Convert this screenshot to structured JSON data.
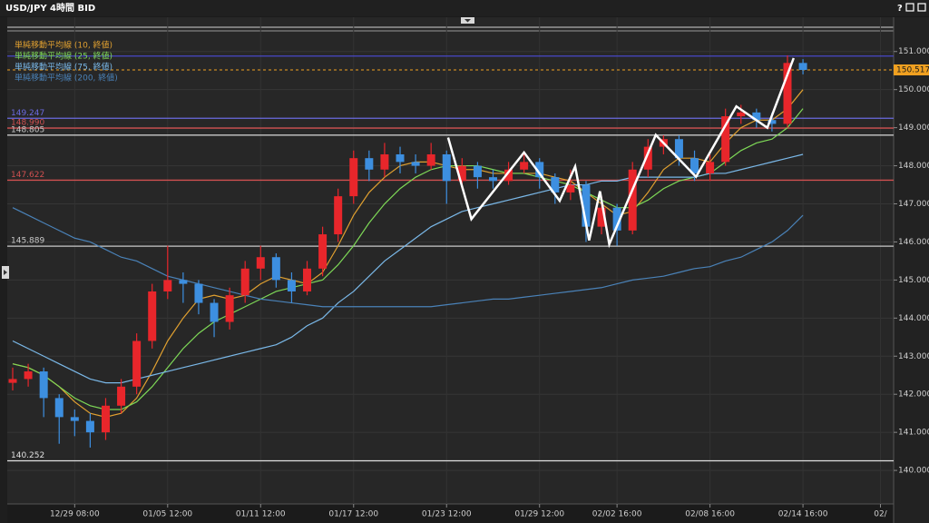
{
  "window": {
    "title": "USD/JPY 4時間 BID",
    "help": "?"
  },
  "chart_data": {
    "type": "candlestick",
    "categories": [
      null,
      null,
      null,
      null,
      "12/29 08:00",
      null,
      null,
      null,
      null,
      null,
      "01/05 12:00",
      null,
      null,
      null,
      null,
      null,
      "01/11 12:00",
      null,
      null,
      null,
      null,
      null,
      "01/17 12:00",
      null,
      null,
      null,
      null,
      null,
      "01/23 12:00",
      null,
      null,
      null,
      null,
      null,
      "01/29 12:00",
      null,
      null,
      null,
      null,
      "02/02 16:00",
      null,
      null,
      null,
      null,
      null,
      "02/08 16:00",
      null,
      null,
      null,
      null,
      null,
      "02/14 16:00",
      null,
      null,
      null,
      null,
      "02/"
    ],
    "open": [
      142.3,
      142.4,
      142.6,
      141.9,
      141.4,
      141.3,
      141.0,
      141.7,
      142.2,
      143.4,
      144.7,
      145.0,
      144.9,
      144.4,
      143.9,
      144.6,
      145.3,
      145.6,
      145.0,
      144.7,
      145.3,
      146.2,
      147.2,
      148.2,
      147.9,
      148.3,
      148.1,
      148.0,
      148.3,
      147.6,
      148.0,
      147.7,
      147.6,
      147.9,
      148.1,
      147.7,
      147.3,
      147.5,
      146.4,
      146.9,
      146.3,
      147.9,
      148.5,
      148.7,
      148.2,
      147.8,
      148.1,
      149.3,
      149.4,
      149.2,
      149.1,
      150.7,
      null,
      null,
      null,
      null,
      null
    ],
    "high": [
      142.7,
      142.8,
      142.7,
      142.0,
      141.6,
      141.5,
      141.9,
      142.4,
      143.6,
      144.9,
      145.9,
      145.2,
      145.0,
      144.5,
      144.8,
      145.5,
      145.9,
      145.7,
      145.2,
      145.5,
      146.4,
      147.4,
      148.4,
      148.4,
      148.6,
      148.5,
      148.3,
      148.6,
      148.4,
      148.2,
      148.1,
      147.9,
      148.1,
      148.3,
      148.2,
      147.8,
      147.9,
      147.6,
      147.2,
      147.0,
      148.1,
      148.7,
      148.8,
      148.8,
      148.4,
      148.3,
      149.5,
      149.6,
      149.5,
      149.4,
      150.9,
      150.8,
      null,
      null,
      null,
      null,
      null
    ],
    "low": [
      142.1,
      142.2,
      141.4,
      140.7,
      140.9,
      140.6,
      140.8,
      141.5,
      142.0,
      143.2,
      144.5,
      144.4,
      144.1,
      143.5,
      143.7,
      144.4,
      145.0,
      144.8,
      144.4,
      144.6,
      145.1,
      146.0,
      147.0,
      147.6,
      147.7,
      147.8,
      147.8,
      147.9,
      147.0,
      147.4,
      147.4,
      147.4,
      147.5,
      147.8,
      147.4,
      147.0,
      147.1,
      146.0,
      146.2,
      145.9,
      146.2,
      147.7,
      148.3,
      148.0,
      147.6,
      147.6,
      148.0,
      149.1,
      149.0,
      148.9,
      149.0,
      150.4,
      null,
      null,
      null,
      null,
      null
    ],
    "close": [
      142.4,
      142.6,
      141.9,
      141.4,
      141.3,
      141.0,
      141.7,
      142.2,
      143.4,
      144.7,
      145.0,
      144.9,
      144.4,
      143.9,
      144.6,
      145.3,
      145.6,
      145.0,
      144.7,
      145.3,
      146.2,
      147.2,
      148.2,
      147.9,
      148.3,
      148.1,
      148.0,
      148.3,
      147.6,
      148.0,
      147.7,
      147.6,
      147.9,
      148.1,
      147.7,
      147.3,
      147.5,
      146.4,
      146.9,
      146.3,
      147.9,
      148.5,
      148.7,
      148.2,
      147.8,
      148.1,
      149.3,
      149.4,
      149.2,
      149.1,
      150.7,
      150.517,
      null,
      null,
      null,
      null,
      null
    ],
    "up_color": "#e8262b",
    "down_color": "#3d8fe0",
    "series": [
      {
        "name": "単純移動平均線 (10, 終値)",
        "color": "#e0a030",
        "values": [
          142.8,
          142.7,
          142.5,
          142.2,
          141.8,
          141.5,
          141.4,
          141.5,
          141.9,
          142.6,
          143.4,
          144.0,
          144.5,
          144.6,
          144.5,
          144.6,
          144.9,
          145.1,
          145.0,
          144.9,
          145.2,
          145.9,
          146.7,
          147.3,
          147.7,
          148.0,
          148.1,
          148.1,
          148.0,
          147.9,
          147.9,
          147.8,
          147.8,
          147.8,
          147.8,
          147.7,
          147.6,
          147.3,
          147.0,
          146.7,
          146.8,
          147.3,
          147.9,
          148.2,
          148.2,
          148.1,
          148.6,
          149.0,
          149.2,
          149.2,
          149.5,
          150.0,
          null,
          null,
          null,
          null,
          null
        ]
      },
      {
        "name": "単純移動平均線 (25, 終値)",
        "color": "#7ed957",
        "values": [
          142.8,
          142.7,
          142.5,
          142.2,
          141.9,
          141.7,
          141.6,
          141.6,
          141.8,
          142.2,
          142.7,
          143.2,
          143.6,
          143.9,
          144.1,
          144.3,
          144.5,
          144.7,
          144.8,
          144.9,
          145.0,
          145.4,
          145.9,
          146.5,
          147.0,
          147.4,
          147.7,
          147.9,
          148.0,
          148.0,
          148.0,
          147.9,
          147.8,
          147.8,
          147.7,
          147.6,
          147.5,
          147.3,
          147.1,
          146.9,
          146.9,
          147.1,
          147.4,
          147.6,
          147.7,
          147.8,
          148.1,
          148.4,
          148.6,
          148.7,
          149.0,
          149.5,
          null,
          null,
          null,
          null,
          null
        ]
      },
      {
        "name": "単純移動平均線 (75, 終値)",
        "color": "#7ab8e8",
        "values": [
          143.4,
          143.2,
          143.0,
          142.8,
          142.6,
          142.4,
          142.3,
          142.3,
          142.4,
          142.5,
          142.6,
          142.7,
          142.8,
          142.9,
          143.0,
          143.1,
          143.2,
          143.3,
          143.5,
          143.8,
          144.0,
          144.4,
          144.7,
          145.1,
          145.5,
          145.8,
          146.1,
          146.4,
          146.6,
          146.8,
          146.9,
          147.0,
          147.1,
          147.2,
          147.3,
          147.4,
          147.5,
          147.5,
          147.6,
          147.6,
          147.7,
          147.7,
          147.7,
          147.7,
          147.7,
          147.8,
          147.8,
          147.9,
          148.0,
          148.1,
          148.2,
          148.3,
          null,
          null,
          null,
          null,
          null
        ]
      },
      {
        "name": "単純移動平均線 (200, 終値)",
        "color": "#4a82b8",
        "values": [
          146.9,
          146.7,
          146.5,
          146.3,
          146.1,
          146.0,
          145.8,
          145.6,
          145.5,
          145.3,
          145.1,
          145.0,
          144.9,
          144.8,
          144.7,
          144.6,
          144.5,
          144.45,
          144.4,
          144.35,
          144.3,
          144.3,
          144.3,
          144.3,
          144.3,
          144.3,
          144.3,
          144.3,
          144.35,
          144.4,
          144.45,
          144.5,
          144.5,
          144.55,
          144.6,
          144.65,
          144.7,
          144.75,
          144.8,
          144.9,
          145.0,
          145.05,
          145.1,
          145.2,
          145.3,
          145.35,
          145.5,
          145.6,
          145.8,
          146.0,
          146.3,
          146.7,
          null,
          null,
          null,
          null,
          null
        ]
      }
    ],
    "ylim": [
      139.12,
      151.9
    ],
    "yticks": [
      {
        "value": 140,
        "label": "140.000"
      },
      {
        "value": 141,
        "label": "141.000"
      },
      {
        "value": 142,
        "label": "142.000"
      },
      {
        "value": 143,
        "label": "143.000"
      },
      {
        "value": 144,
        "label": "144.000"
      },
      {
        "value": 145,
        "label": "145.000"
      },
      {
        "value": 146,
        "label": "146.000"
      },
      {
        "value": 147,
        "label": "147.000"
      },
      {
        "value": 148,
        "label": "148.000"
      },
      {
        "value": 149,
        "label": "149.000"
      },
      {
        "value": 150,
        "label": "150.000"
      },
      {
        "value": 151,
        "label": "151.000"
      }
    ],
    "grid": true,
    "levels": [
      {
        "value": 150.88,
        "color": "#4848c8",
        "show_label": false
      },
      {
        "value": 149.247,
        "color": "#6a6ae0",
        "show_label": true
      },
      {
        "value": 148.99,
        "label": "148.990",
        "color": "#d05050",
        "show_label": true
      },
      {
        "value": 148.805,
        "color": "#c8c8c8",
        "show_label": true
      },
      {
        "value": 147.622,
        "color": "#d05050",
        "show_label": true
      },
      {
        "value": 145.889,
        "color": "#c8c8c8",
        "show_label": true
      },
      {
        "value": 140.252,
        "color": "#e0e0e0",
        "show_label": true
      }
    ],
    "current_price": 150.517,
    "current_price_color": "#f0a020",
    "zigzag": {
      "color": "#ffffff",
      "x": [
        28.1,
        29.6,
        33.0,
        35.3,
        36.3,
        37.2,
        37.9,
        38.5,
        41.5,
        44.1,
        46.7,
        48.7,
        50.4
      ],
      "y": [
        148.74,
        146.6,
        148.35,
        147.08,
        147.98,
        146.04,
        147.33,
        145.94,
        148.81,
        147.71,
        149.56,
        149.0,
        150.83
      ]
    }
  }
}
